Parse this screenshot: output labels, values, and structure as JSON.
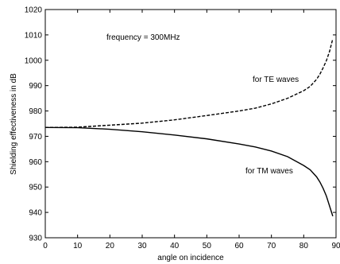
{
  "chart_data": {
    "type": "line",
    "title": "",
    "xlabel": "angle on incidence",
    "ylabel": "Shielding effectiveness in dB",
    "xlim": [
      0,
      90
    ],
    "ylim": [
      930,
      1020
    ],
    "x_ticks": [
      "0",
      "10",
      "20",
      "30",
      "40",
      "50",
      "60",
      "70",
      "80",
      "90"
    ],
    "y_ticks": [
      "930",
      "940",
      "950",
      "960",
      "970",
      "980",
      "990",
      "1000",
      "1010",
      "1020"
    ],
    "grid": false,
    "annotations": {
      "frequency": "frequency = 300MHz",
      "te_label": "for TE waves",
      "tm_label": "for TM waves"
    },
    "series": [
      {
        "name": "for TE waves",
        "style": "dashed",
        "color": "#000000",
        "x": [
          0,
          10,
          20,
          30,
          40,
          50,
          60,
          65,
          70,
          75,
          80,
          82,
          84,
          85,
          86,
          87,
          88,
          88.5,
          89
        ],
        "y": [
          973.5,
          973.6,
          974.4,
          975.2,
          976.5,
          978.2,
          980.0,
          981.1,
          982.8,
          985.0,
          988.0,
          989.7,
          992.5,
          994.5,
          997.0,
          999.8,
          1003.5,
          1006.0,
          1008.5
        ]
      },
      {
        "name": "for TM waves",
        "style": "solid",
        "color": "#000000",
        "x": [
          0,
          10,
          20,
          30,
          40,
          50,
          60,
          65,
          70,
          75,
          80,
          82,
          84,
          85,
          86,
          87,
          88,
          88.5,
          89
        ],
        "y": [
          973.5,
          973.4,
          972.8,
          971.8,
          970.5,
          969.0,
          967.0,
          965.8,
          964.2,
          962.0,
          958.5,
          956.8,
          954.0,
          952.0,
          949.5,
          946.5,
          942.5,
          940.5,
          938.5
        ]
      }
    ]
  }
}
